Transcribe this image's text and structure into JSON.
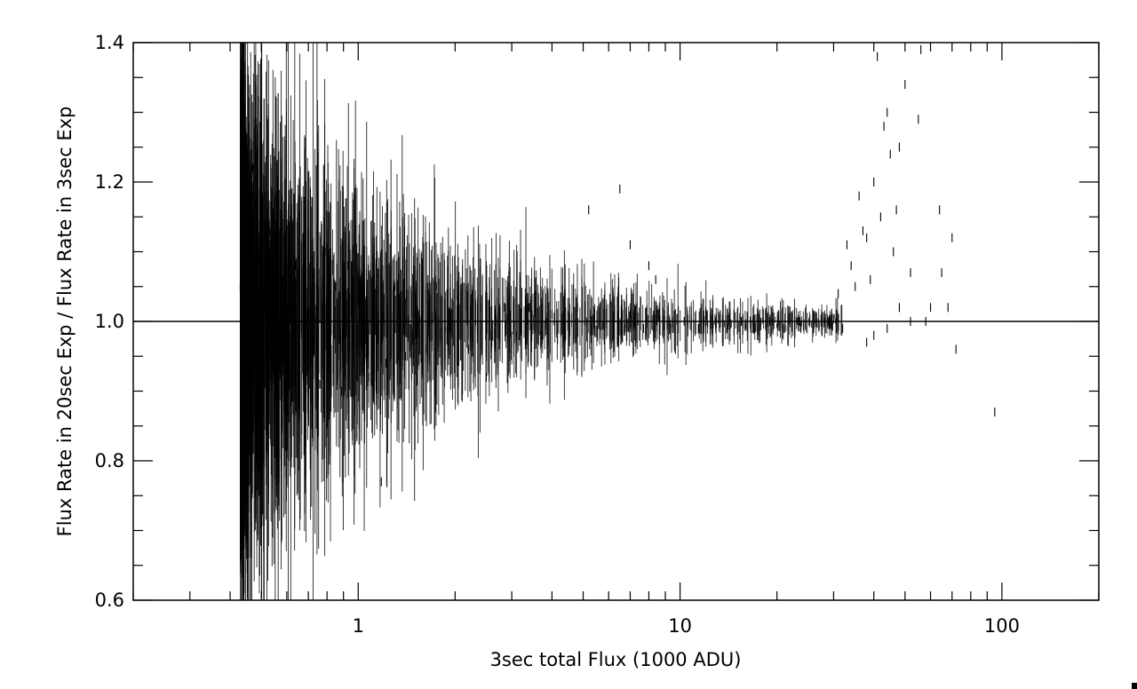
{
  "chart_data": {
    "type": "scatter",
    "title": "",
    "xlabel": "3sec total Flux (1000 ADU)",
    "ylabel": "Flux Rate in 20sec Exp / Flux Rate in 3sec Exp",
    "xscale": "log",
    "xlim": [
      0.2,
      200
    ],
    "ylim": [
      0.6,
      1.4
    ],
    "x_tick_labels": [
      {
        "value": 1,
        "label": "1"
      },
      {
        "value": 10,
        "label": "10"
      },
      {
        "value": 100,
        "label": "100"
      }
    ],
    "y_tick_labels": [
      {
        "value": 0.6,
        "label": "0.6"
      },
      {
        "value": 0.8,
        "label": "0.8"
      },
      {
        "value": 1.0,
        "label": "1.0"
      },
      {
        "value": 1.2,
        "label": "1.2"
      },
      {
        "value": 1.4,
        "label": "1.4"
      }
    ],
    "reference_line": {
      "y": 1.0
    },
    "grid": false,
    "marker": "short vertical dash",
    "color": "#000000",
    "series": [
      {
        "points": [
          {
            "x": 0.43,
            "y": 1.05
          },
          {
            "x": 0.44,
            "y": 0.93
          },
          {
            "x": 0.45,
            "y": 1.16
          },
          {
            "x": 0.46,
            "y": 0.84
          },
          {
            "x": 0.47,
            "y": 1.22
          },
          {
            "x": 0.48,
            "y": 0.76
          },
          {
            "x": 0.49,
            "y": 1.09
          },
          {
            "x": 0.5,
            "y": 0.95
          },
          {
            "x": 0.51,
            "y": 1.18
          },
          {
            "x": 0.52,
            "y": 0.82
          },
          {
            "x": 0.53,
            "y": 1.13
          },
          {
            "x": 0.55,
            "y": 0.89
          },
          {
            "x": 0.56,
            "y": 1.04
          },
          {
            "x": 0.58,
            "y": 0.86
          },
          {
            "x": 0.6,
            "y": 1.14
          },
          {
            "x": 0.62,
            "y": 0.92
          },
          {
            "x": 0.64,
            "y": 1.08
          },
          {
            "x": 0.66,
            "y": 0.88
          },
          {
            "x": 0.68,
            "y": 1.11
          },
          {
            "x": 0.7,
            "y": 0.94
          },
          {
            "x": 0.73,
            "y": 1.07
          },
          {
            "x": 0.76,
            "y": 0.91
          },
          {
            "x": 0.79,
            "y": 1.1
          },
          {
            "x": 0.82,
            "y": 0.93
          },
          {
            "x": 0.85,
            "y": 1.05
          },
          {
            "x": 0.89,
            "y": 0.9
          },
          {
            "x": 0.93,
            "y": 1.08
          },
          {
            "x": 0.97,
            "y": 0.95
          },
          {
            "x": 1.02,
            "y": 1.06
          },
          {
            "x": 1.08,
            "y": 0.92
          },
          {
            "x": 1.15,
            "y": 1.07
          },
          {
            "x": 1.22,
            "y": 0.94
          },
          {
            "x": 1.3,
            "y": 1.05
          },
          {
            "x": 1.4,
            "y": 0.95
          },
          {
            "x": 1.5,
            "y": 1.04
          },
          {
            "x": 1.62,
            "y": 0.96
          },
          {
            "x": 1.75,
            "y": 1.05
          },
          {
            "x": 1.9,
            "y": 0.97
          },
          {
            "x": 2.05,
            "y": 1.03
          },
          {
            "x": 2.2,
            "y": 0.96
          },
          {
            "x": 2.4,
            "y": 1.02
          },
          {
            "x": 2.6,
            "y": 0.97
          },
          {
            "x": 2.85,
            "y": 1.02
          },
          {
            "x": 3.1,
            "y": 0.98
          },
          {
            "x": 3.4,
            "y": 1.02
          },
          {
            "x": 3.7,
            "y": 0.98
          },
          {
            "x": 4.0,
            "y": 1.01
          },
          {
            "x": 4.4,
            "y": 0.98
          },
          {
            "x": 4.8,
            "y": 1.02
          },
          {
            "x": 5.3,
            "y": 0.99
          },
          {
            "x": 5.8,
            "y": 1.01
          },
          {
            "x": 6.4,
            "y": 0.99
          },
          {
            "x": 7.0,
            "y": 1.01
          },
          {
            "x": 7.7,
            "y": 0.99
          },
          {
            "x": 8.5,
            "y": 1.01
          },
          {
            "x": 9.4,
            "y": 0.99
          },
          {
            "x": 10.3,
            "y": 1.0
          },
          {
            "x": 11.4,
            "y": 0.99
          },
          {
            "x": 12.6,
            "y": 1.01
          },
          {
            "x": 14.0,
            "y": 0.99
          },
          {
            "x": 15.5,
            "y": 1.0
          },
          {
            "x": 17.0,
            "y": 0.99
          },
          {
            "x": 19.0,
            "y": 1.0
          },
          {
            "x": 21.0,
            "y": 0.99
          },
          {
            "x": 23.5,
            "y": 1.0
          },
          {
            "x": 26.0,
            "y": 0.99
          },
          {
            "x": 29.0,
            "y": 1.0
          },
          {
            "x": 32.0,
            "y": 0.99
          },
          {
            "x": 5.2,
            "y": 1.16
          },
          {
            "x": 6.5,
            "y": 1.19
          },
          {
            "x": 7.0,
            "y": 1.11
          },
          {
            "x": 8.0,
            "y": 1.08
          },
          {
            "x": 8.4,
            "y": 1.06
          },
          {
            "x": 1.18,
            "y": 0.77
          },
          {
            "x": 2.5,
            "y": 0.92
          },
          {
            "x": 31.0,
            "y": 1.04
          },
          {
            "x": 33.0,
            "y": 1.11
          },
          {
            "x": 34.0,
            "y": 1.08
          },
          {
            "x": 35.0,
            "y": 1.05
          },
          {
            "x": 36.0,
            "y": 1.18
          },
          {
            "x": 37.0,
            "y": 1.13
          },
          {
            "x": 38.0,
            "y": 1.12
          },
          {
            "x": 39.0,
            "y": 1.06
          },
          {
            "x": 40.0,
            "y": 1.2
          },
          {
            "x": 41.0,
            "y": 1.38
          },
          {
            "x": 42.0,
            "y": 1.15
          },
          {
            "x": 43.0,
            "y": 1.28
          },
          {
            "x": 44.0,
            "y": 1.3
          },
          {
            "x": 45.0,
            "y": 1.24
          },
          {
            "x": 46.0,
            "y": 1.1
          },
          {
            "x": 47.0,
            "y": 1.16
          },
          {
            "x": 48.0,
            "y": 1.25
          },
          {
            "x": 50.0,
            "y": 1.34
          },
          {
            "x": 52.0,
            "y": 1.07
          },
          {
            "x": 55.0,
            "y": 1.29
          },
          {
            "x": 56.0,
            "y": 1.39
          },
          {
            "x": 60.0,
            "y": 1.02
          },
          {
            "x": 64.0,
            "y": 1.16
          },
          {
            "x": 65.0,
            "y": 1.07
          },
          {
            "x": 68.0,
            "y": 1.02
          },
          {
            "x": 70.0,
            "y": 1.12
          },
          {
            "x": 72.0,
            "y": 0.96
          },
          {
            "x": 95.0,
            "y": 0.87
          },
          {
            "x": 38.0,
            "y": 0.97
          },
          {
            "x": 40.0,
            "y": 0.98
          },
          {
            "x": 44.0,
            "y": 0.99
          },
          {
            "x": 48.0,
            "y": 1.02
          },
          {
            "x": 52.0,
            "y": 1.0
          },
          {
            "x": 58.0,
            "y": 1.0
          }
        ]
      }
    ]
  }
}
